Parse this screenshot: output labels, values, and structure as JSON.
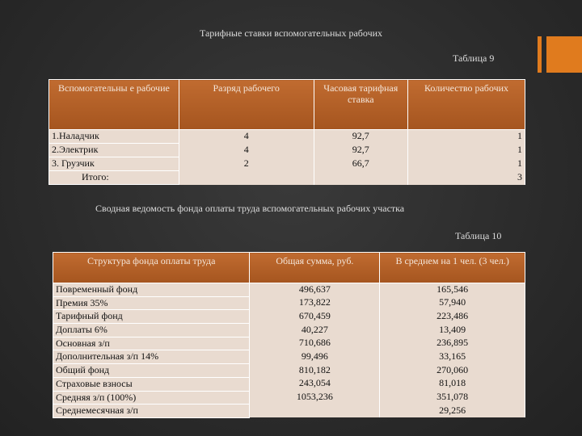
{
  "title": "Тарифные ставки вспомогательных рабочих",
  "table9": {
    "caption": "Таблица 9",
    "header": [
      "Вспомогательны е рабочие",
      "Разряд рабочего",
      "Часовая тарифная ставка",
      "Количество рабочих"
    ],
    "rows": [
      [
        "1.Наладчик",
        "4",
        "92,7",
        "1"
      ],
      [
        "2.Электрик",
        "4",
        "92,7",
        "1"
      ],
      [
        "3. Грузчик",
        "2",
        "66,7",
        "1"
      ],
      [
        "Итого:",
        "",
        "",
        "3"
      ]
    ]
  },
  "subtitle": "Сводная ведомость фонда оплаты труда вспомогательных рабочих участка",
  "table10": {
    "caption": "Таблица 10",
    "header": [
      "Структура фонда оплаты труда",
      "Общая сумма, руб.",
      "В среднем на 1 чел. (3 чел.)"
    ],
    "rows": [
      [
        "Повременный фонд",
        "496,637",
        "165,546"
      ],
      [
        "Премия 35%",
        "173,822",
        "57,940"
      ],
      [
        "Тарифный фонд",
        "670,459",
        "223,486"
      ],
      [
        "Доплаты 6%",
        "40,227",
        "13,409"
      ],
      [
        "Основная з/п",
        "710,686",
        "236,895"
      ],
      [
        "Дополнительная з/п 14%",
        "99,496",
        "33,165"
      ],
      [
        "Общий фонд",
        "810,182",
        "270,060"
      ],
      [
        "Страховые взносы",
        "243,054",
        "81,018"
      ],
      [
        "Средняя з/п (100%)",
        "1053,236",
        "351,078"
      ],
      [
        "Среднемесячная з/п",
        "",
        "29,256"
      ]
    ]
  }
}
